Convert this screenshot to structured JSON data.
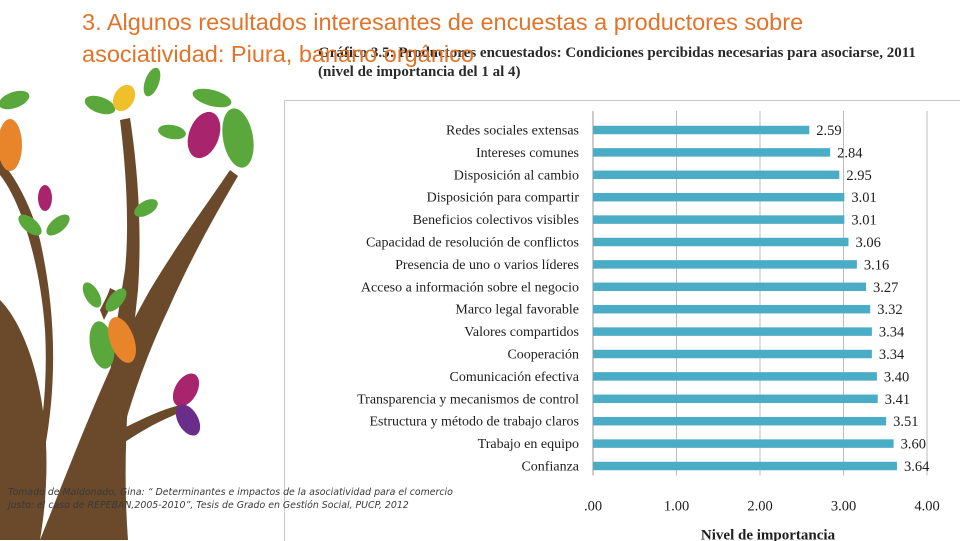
{
  "slide": {
    "title_number": "3.",
    "title_text": "Algunos resultados interesantes de encuestas a productores sobre asociatividad: Piura, banano orgánico",
    "caption": "Gráfico 3.5: Productores encuestados: Condiciones percibidas necesarias para asociarse, 2011 (nivel de importancia del 1 al 4)",
    "source_note": "Tomado de Maldonado, Gina: “ Determinantes e impactos de la asociatividad para el comercio justo: el caso de REPEBAN,2005-2010”, Tesis de Grado en Gestión Social, PUCP, 2012"
  },
  "colors": {
    "title": "#e0742a",
    "bar": "#4bacc6",
    "trunk": "#6b4a2b",
    "leaf_green": "#5aa83c",
    "pod_magenta": "#a8256e",
    "pod_orange": "#e8852a",
    "pod_yellow": "#f0c02a"
  },
  "chart_data": {
    "type": "bar",
    "orientation": "horizontal",
    "categories": [
      "Redes sociales extensas",
      "Intereses comunes",
      "Disposición al cambio",
      "Disposición para compartir",
      "Beneficios colectivos visibles",
      "Capacidad de resolución de conflictos",
      "Presencia de uno o varios líderes",
      "Acceso a información sobre el negocio",
      "Marco legal favorable",
      "Valores compartidos",
      "Cooperación",
      "Comunicación efectiva",
      "Transparencia y mecanismos de control",
      "Estructura y método de trabajo claros",
      "Trabajo en equipo",
      "Confianza"
    ],
    "values": [
      2.59,
      2.84,
      2.95,
      3.01,
      3.01,
      3.06,
      3.16,
      3.27,
      3.32,
      3.34,
      3.34,
      3.4,
      3.41,
      3.51,
      3.6,
      3.64
    ],
    "value_labels": [
      "2.59",
      "2.84",
      "2.95",
      "3.01",
      "3.01",
      "3.06",
      "3.16",
      "3.27",
      "3.32",
      "3.34",
      "3.34",
      "3.40",
      "3.41",
      "3.51",
      "3.60",
      "3.64"
    ],
    "xlabel": "Nivel de importancia",
    "xlim": [
      0,
      4
    ],
    "xticks": [
      0,
      1,
      2,
      3,
      4
    ],
    "xtick_labels": [
      ".00",
      "1.00",
      "2.00",
      "3.00",
      "4.00"
    ],
    "grid": true
  }
}
